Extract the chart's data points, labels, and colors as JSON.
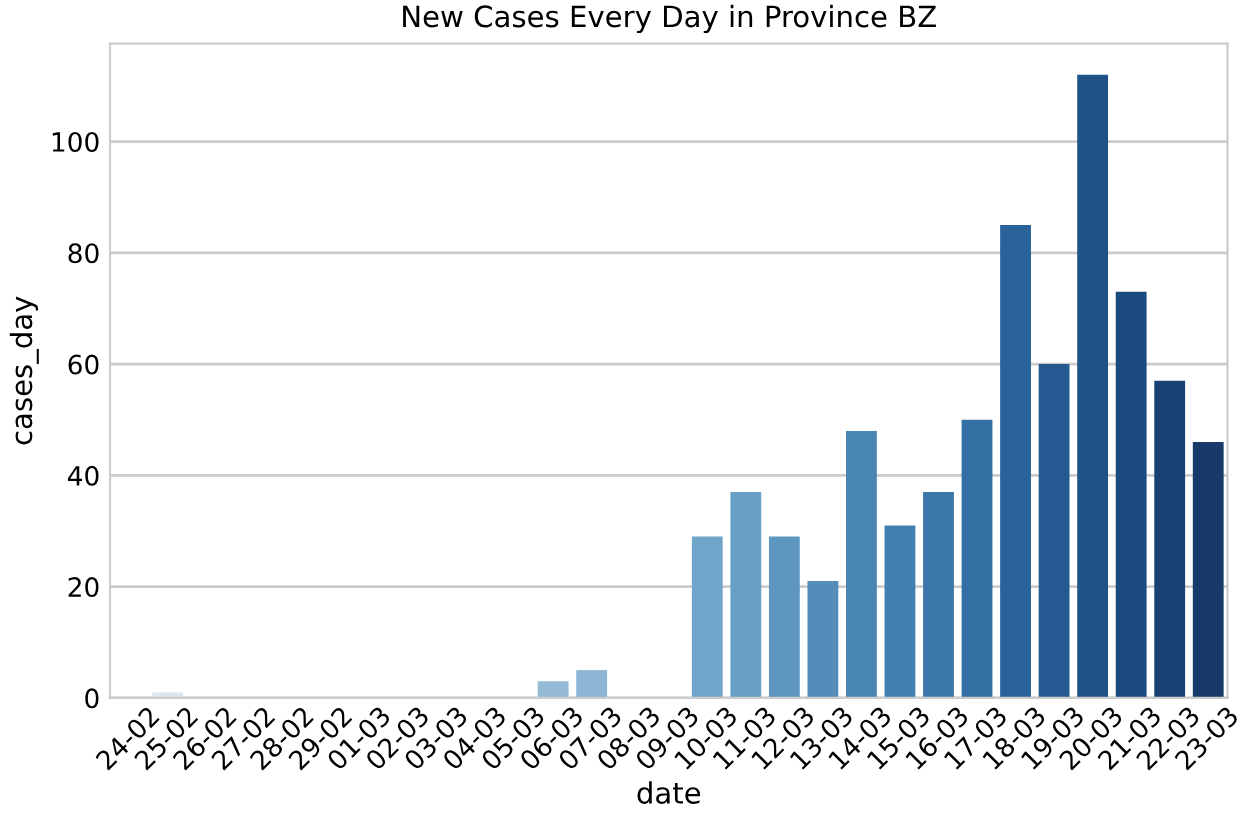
{
  "chart_data": {
    "type": "bar",
    "title": "New Cases Every Day in Province BZ",
    "xlabel": "date",
    "ylabel": "cases_day",
    "categories": [
      "24-02",
      "25-02",
      "26-02",
      "27-02",
      "28-02",
      "29-02",
      "01-03",
      "02-03",
      "03-03",
      "04-03",
      "05-03",
      "06-03",
      "07-03",
      "08-03",
      "09-03",
      "10-03",
      "11-03",
      "12-03",
      "13-03",
      "14-03",
      "15-03",
      "16-03",
      "17-03",
      "18-03",
      "19-03",
      "20-03",
      "21-03",
      "22-03",
      "23-03"
    ],
    "values": [
      0,
      1,
      0,
      0,
      0,
      0,
      0,
      0,
      0,
      0,
      0,
      3,
      5,
      0,
      0,
      29,
      37,
      29,
      21,
      48,
      31,
      37,
      50,
      85,
      60,
      112,
      73,
      57,
      46
    ],
    "colors": [
      "#e2ebf3",
      "#dce6ef",
      "#d6e2ec",
      "#d0dee9",
      "#c9d9e6",
      "#c2d5e3",
      "#bbd1e0",
      "#b4ccdd",
      "#acc8dc",
      "#a4c4da",
      "#9cbfd8",
      "#94bad6",
      "#8bb5d3",
      "#82b0d0",
      "#78aacc",
      "#6fa5c8",
      "#67a0c4",
      "#5d97c0",
      "#538ebb",
      "#4a86b3",
      "#427fae",
      "#3b77a8",
      "#336fa2",
      "#2a6399",
      "#245a91",
      "#1f5289",
      "#1b4a80",
      "#184276",
      "#173a6b"
    ],
    "ylim": [
      0,
      117.6
    ],
    "yticks": [
      0,
      20,
      40,
      60,
      80,
      100
    ],
    "grid": "y"
  }
}
